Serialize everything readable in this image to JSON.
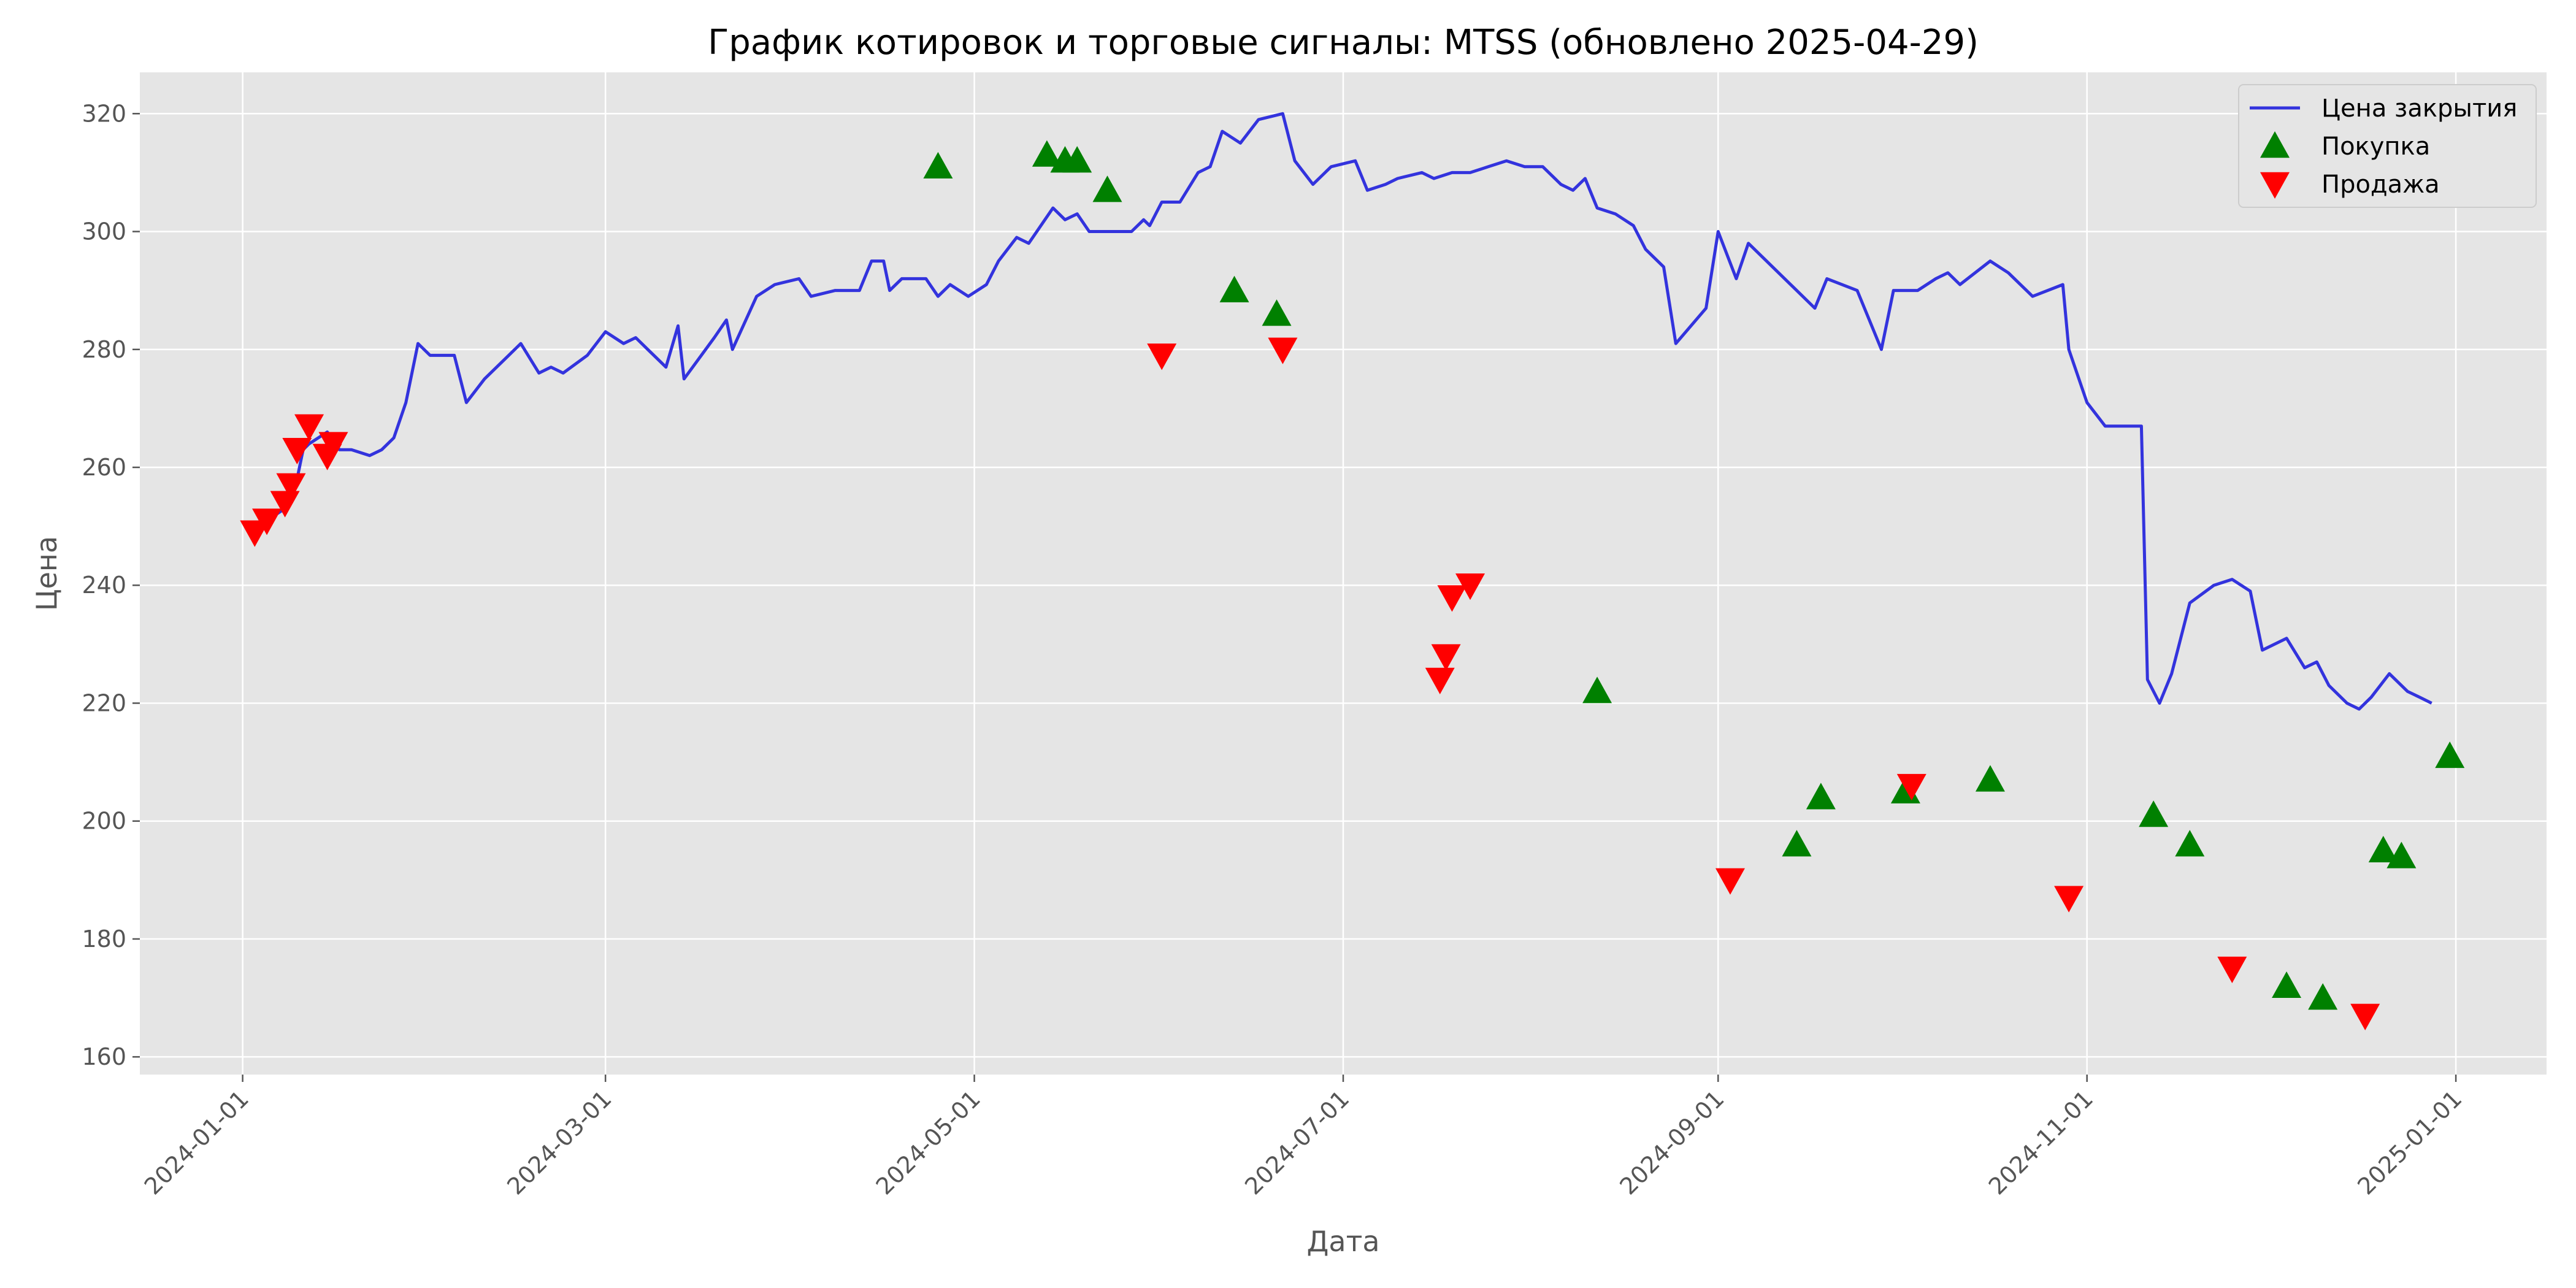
{
  "chart_data": {
    "type": "line",
    "title": "График котировок и торговые сигналы: MTSS (обновлено 2025-04-29)",
    "xlabel": "Дата",
    "ylabel": "Цена",
    "xlim": [
      "2023-12-15",
      "2025-01-16"
    ],
    "ylim": [
      157,
      327
    ],
    "x_ticks": [
      "2024-01-01",
      "2024-03-01",
      "2024-05-01",
      "2024-07-01",
      "2024-09-01",
      "2024-11-01",
      "2025-01-01"
    ],
    "y_ticks": [
      160,
      180,
      200,
      220,
      240,
      260,
      280,
      300,
      320
    ],
    "grid": true,
    "legend_position": "top-right",
    "series": [
      {
        "name": "Цена закрытия",
        "color": "#3333dd",
        "points": [
          [
            "2024-01-03",
            249
          ],
          [
            "2024-01-05",
            251
          ],
          [
            "2024-01-08",
            253
          ],
          [
            "2024-01-09",
            254
          ],
          [
            "2024-01-10",
            258
          ],
          [
            "2024-01-11",
            263
          ],
          [
            "2024-01-12",
            264
          ],
          [
            "2024-01-15",
            266
          ],
          [
            "2024-01-17",
            263
          ],
          [
            "2024-01-19",
            263
          ],
          [
            "2024-01-22",
            262
          ],
          [
            "2024-01-24",
            263
          ],
          [
            "2024-01-26",
            265
          ],
          [
            "2024-01-28",
            271
          ],
          [
            "2024-01-30",
            281
          ],
          [
            "2024-02-01",
            279
          ],
          [
            "2024-02-05",
            279
          ],
          [
            "2024-02-07",
            271
          ],
          [
            "2024-02-10",
            275
          ],
          [
            "2024-02-14",
            279
          ],
          [
            "2024-02-16",
            281
          ],
          [
            "2024-02-19",
            276
          ],
          [
            "2024-02-21",
            277
          ],
          [
            "2024-02-23",
            276
          ],
          [
            "2024-02-27",
            279
          ],
          [
            "2024-03-01",
            283
          ],
          [
            "2024-03-04",
            281
          ],
          [
            "2024-03-06",
            282
          ],
          [
            "2024-03-08",
            280
          ],
          [
            "2024-03-11",
            277
          ],
          [
            "2024-03-13",
            284
          ],
          [
            "2024-03-14",
            275
          ],
          [
            "2024-03-19",
            282
          ],
          [
            "2024-03-21",
            285
          ],
          [
            "2024-03-22",
            280
          ],
          [
            "2024-03-26",
            289
          ],
          [
            "2024-03-29",
            291
          ],
          [
            "2024-04-02",
            292
          ],
          [
            "2024-04-04",
            289
          ],
          [
            "2024-04-08",
            290
          ],
          [
            "2024-04-12",
            290
          ],
          [
            "2024-04-14",
            295
          ],
          [
            "2024-04-16",
            295
          ],
          [
            "2024-04-17",
            290
          ],
          [
            "2024-04-19",
            292
          ],
          [
            "2024-04-23",
            292
          ],
          [
            "2024-04-25",
            289
          ],
          [
            "2024-04-27",
            291
          ],
          [
            "2024-04-30",
            289
          ],
          [
            "2024-05-03",
            291
          ],
          [
            "2024-05-05",
            295
          ],
          [
            "2024-05-08",
            299
          ],
          [
            "2024-05-10",
            298
          ],
          [
            "2024-05-14",
            304
          ],
          [
            "2024-05-16",
            302
          ],
          [
            "2024-05-18",
            303
          ],
          [
            "2024-05-20",
            300
          ],
          [
            "2024-05-22",
            300
          ],
          [
            "2024-05-27",
            300
          ],
          [
            "2024-05-29",
            302
          ],
          [
            "2024-05-30",
            301
          ],
          [
            "2024-06-01",
            305
          ],
          [
            "2024-06-04",
            305
          ],
          [
            "2024-06-07",
            310
          ],
          [
            "2024-06-09",
            311
          ],
          [
            "2024-06-11",
            317
          ],
          [
            "2024-06-14",
            315
          ],
          [
            "2024-06-17",
            319
          ],
          [
            "2024-06-21",
            320
          ],
          [
            "2024-06-23",
            312
          ],
          [
            "2024-06-26",
            308
          ],
          [
            "2024-06-29",
            311
          ],
          [
            "2024-07-03",
            312
          ],
          [
            "2024-07-05",
            307
          ],
          [
            "2024-07-08",
            308
          ],
          [
            "2024-07-10",
            309
          ],
          [
            "2024-07-14",
            310
          ],
          [
            "2024-07-16",
            309
          ],
          [
            "2024-07-19",
            310
          ],
          [
            "2024-07-22",
            310
          ],
          [
            "2024-07-25",
            311
          ],
          [
            "2024-07-28",
            312
          ],
          [
            "2024-07-31",
            311
          ],
          [
            "2024-08-03",
            311
          ],
          [
            "2024-08-06",
            308
          ],
          [
            "2024-08-08",
            307
          ],
          [
            "2024-08-10",
            309
          ],
          [
            "2024-08-12",
            304
          ],
          [
            "2024-08-15",
            303
          ],
          [
            "2024-08-18",
            301
          ],
          [
            "2024-08-20",
            297
          ],
          [
            "2024-08-23",
            294
          ],
          [
            "2024-08-25",
            281
          ],
          [
            "2024-08-30",
            287
          ],
          [
            "2024-09-01",
            300
          ],
          [
            "2024-09-04",
            292
          ],
          [
            "2024-09-06",
            298
          ],
          [
            "2024-09-14",
            290
          ],
          [
            "2024-09-17",
            287
          ],
          [
            "2024-09-19",
            292
          ],
          [
            "2024-09-24",
            290
          ],
          [
            "2024-09-26",
            285
          ],
          [
            "2024-09-28",
            280
          ],
          [
            "2024-09-30",
            290
          ],
          [
            "2024-10-04",
            290
          ],
          [
            "2024-10-07",
            292
          ],
          [
            "2024-10-09",
            293
          ],
          [
            "2024-10-11",
            291
          ],
          [
            "2024-10-16",
            295
          ],
          [
            "2024-10-19",
            293
          ],
          [
            "2024-10-23",
            289
          ],
          [
            "2024-10-28",
            291
          ],
          [
            "2024-10-29",
            280
          ],
          [
            "2024-11-01",
            271
          ],
          [
            "2024-11-04",
            267
          ],
          [
            "2024-11-07",
            267
          ],
          [
            "2024-11-10",
            267
          ],
          [
            "2024-11-11",
            224
          ],
          [
            "2024-11-13",
            220
          ],
          [
            "2024-11-15",
            225
          ],
          [
            "2024-11-18",
            237
          ],
          [
            "2024-11-22",
            240
          ],
          [
            "2024-11-25",
            241
          ],
          [
            "2024-11-28",
            239
          ],
          [
            "2024-11-30",
            229
          ],
          [
            "2024-12-04",
            231
          ],
          [
            "2024-12-07",
            226
          ],
          [
            "2024-12-09",
            227
          ],
          [
            "2024-12-11",
            223
          ],
          [
            "2024-12-14",
            220
          ],
          [
            "2024-12-16",
            219
          ],
          [
            "2024-12-18",
            221
          ],
          [
            "2024-12-21",
            225
          ],
          [
            "2024-12-24",
            222
          ],
          [
            "2024-12-26",
            221
          ],
          [
            "2024-12-28",
            220
          ]
        ]
      }
    ],
    "note_series_dates": "approximate",
    "buy_signals": {
      "name": "Покупка",
      "color": "#008000",
      "points": [
        [
          "2024-04-25",
          311
        ],
        [
          "2024-05-13",
          313
        ],
        [
          "2024-05-16",
          312
        ],
        [
          "2024-05-18",
          312
        ],
        [
          "2024-05-23",
          307
        ],
        [
          "2024-06-13",
          290
        ],
        [
          "2024-06-20",
          286
        ],
        [
          "2024-08-12",
          222
        ],
        [
          "2024-09-14",
          196
        ],
        [
          "2024-09-18",
          204
        ],
        [
          "2024-10-02",
          205
        ],
        [
          "2024-10-16",
          207
        ],
        [
          "2024-11-12",
          201
        ],
        [
          "2024-11-18",
          196
        ],
        [
          "2024-12-04",
          172
        ],
        [
          "2024-12-10",
          170
        ],
        [
          "2024-12-20",
          195
        ],
        [
          "2024-12-23",
          194
        ],
        [
          "2024-12-31",
          211
        ]
      ]
    },
    "sell_signals": {
      "name": "Продажа",
      "color": "#ff0000",
      "points": [
        [
          "2024-01-03",
          249
        ],
        [
          "2024-01-05",
          251
        ],
        [
          "2024-01-08",
          254
        ],
        [
          "2024-01-09",
          257
        ],
        [
          "2024-01-10",
          263
        ],
        [
          "2024-01-12",
          267
        ],
        [
          "2024-01-15",
          262
        ],
        [
          "2024-01-16",
          264
        ],
        [
          "2024-06-01",
          279
        ],
        [
          "2024-06-21",
          280
        ],
        [
          "2024-07-17",
          224
        ],
        [
          "2024-07-18",
          228
        ],
        [
          "2024-07-19",
          238
        ],
        [
          "2024-07-22",
          240
        ],
        [
          "2024-09-03",
          190
        ],
        [
          "2024-10-03",
          206
        ],
        [
          "2024-10-29",
          187
        ],
        [
          "2024-11-25",
          175
        ],
        [
          "2024-12-17",
          167
        ]
      ]
    }
  }
}
